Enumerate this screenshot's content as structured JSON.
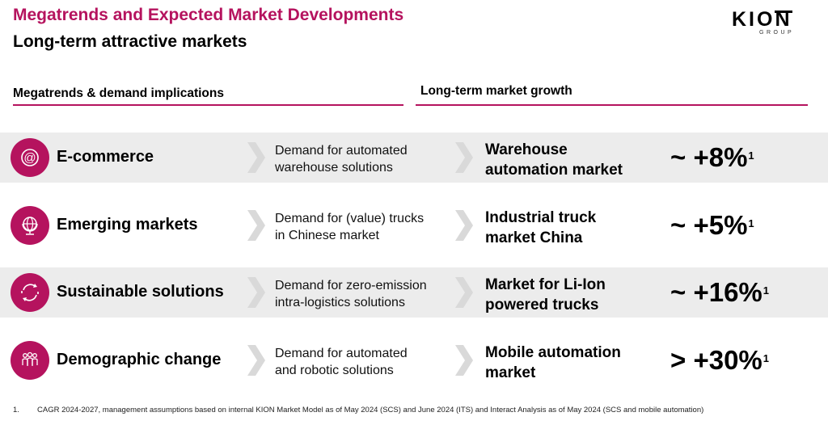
{
  "header": {
    "title": "Megatrends and Expected Market Developments",
    "subtitle": "Long-term attractive markets"
  },
  "logo": {
    "word": "KION",
    "group": "GROUP"
  },
  "columns": {
    "left_heading": "Megatrends & demand implications",
    "right_heading": "Long-term market growth"
  },
  "rows": [
    {
      "icon": "at-sign-icon",
      "trend": "E-commerce",
      "demand_line1": "Demand for automated",
      "demand_line2": "warehouse solutions",
      "market_line1": "Warehouse",
      "market_line2": "automation market",
      "growth": "~ +8%",
      "footnote_ref": "1"
    },
    {
      "icon": "globe-icon",
      "trend": "Emerging markets",
      "demand_line1": "Demand for (value) trucks",
      "demand_line2": "in Chinese market",
      "market_line1": "Industrial truck",
      "market_line2": "market China",
      "growth": "~ +5%",
      "footnote_ref": "1"
    },
    {
      "icon": "recycle-arrows-icon",
      "trend": "Sustainable solutions",
      "demand_line1": "Demand for zero-emission",
      "demand_line2": "intra-logistics solutions",
      "market_line1": "Market for Li-Ion",
      "market_line2": "powered trucks",
      "growth": "~ +16%",
      "footnote_ref": "1"
    },
    {
      "icon": "people-group-icon",
      "trend": "Demographic change",
      "demand_line1": "Demand for automated",
      "demand_line2": "and robotic solutions",
      "market_line1": "Mobile automation",
      "market_line2": "market",
      "growth": "> +30%",
      "footnote_ref": "1"
    }
  ],
  "footnote": {
    "number": "1.",
    "text": "CAGR 2024-2027, management assumptions based on internal KION Market Model as of May 2024 (SCS) and June 2024 (ITS) and Interact Analysis as of May 2024 (SCS and mobile automation)"
  },
  "colors": {
    "accent": "#b5135e",
    "row_shade": "#ececec",
    "chevron": "#d9d9d9"
  }
}
